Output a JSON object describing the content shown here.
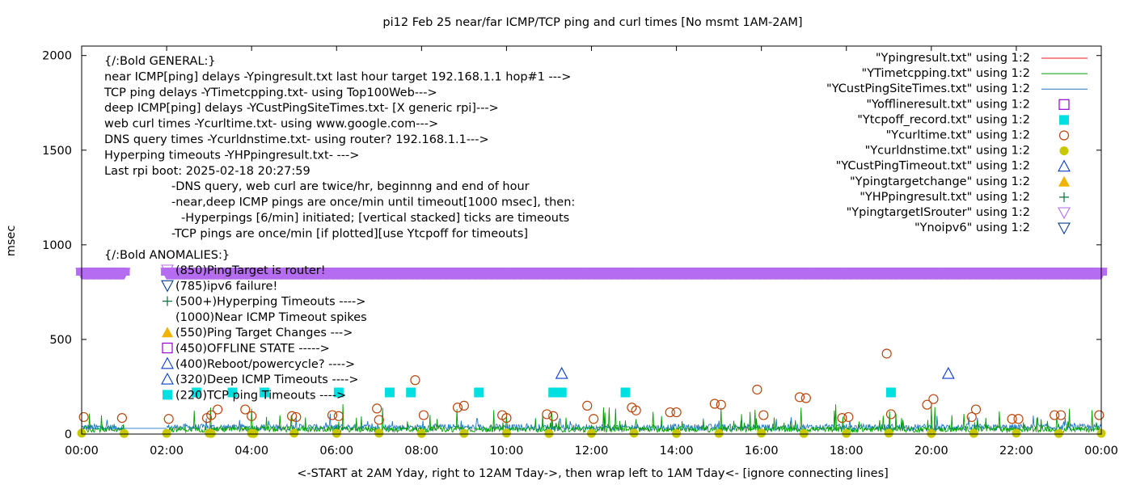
{
  "chart_data": {
    "type": "scatter",
    "title": "pi12 Feb 25  near/far ICMP/TCP ping and curl times [No msmt 1AM-2AM]",
    "xlabel": "<-START at 2AM Yday, right to 12AM Tday->, then wrap left to 1AM Tday<- [ignore connecting lines]",
    "ylabel": "msec",
    "xlim": [
      0,
      24
    ],
    "ylim": [
      0,
      2050
    ],
    "x_ticks": [
      "00:00",
      "02:00",
      "04:00",
      "06:00",
      "08:00",
      "10:00",
      "12:00",
      "14:00",
      "16:00",
      "18:00",
      "20:00",
      "22:00",
      "00:00"
    ],
    "y_ticks": [
      "0",
      "500",
      "1000",
      "1500",
      "2000"
    ],
    "legend_position": "top-right",
    "legend": [
      {
        "label": "\"Ypingresult.txt\" using 1:2",
        "color": "#e41a1c",
        "marker": "line"
      },
      {
        "label": "\"YTimetcpping.txt\" using 1:2",
        "color": "#009e00",
        "marker": "line"
      },
      {
        "label": "\"YCustPingSiteTimes.txt\" using 1:2",
        "color": "#1f77c4",
        "marker": "line"
      },
      {
        "label": "\"Yofflineresult.txt\" using 1:2",
        "color": "#9400d3",
        "marker": "open-square"
      },
      {
        "label": "\"Ytcpoff_record.txt\" using 1:2",
        "color": "#00e0e0",
        "marker": "filled-square"
      },
      {
        "label": "\"Ycurltime.txt\" using 1:2",
        "color": "#b8450b",
        "marker": "open-circle"
      },
      {
        "label": "\"Ycurldnstime.txt\" using 1:2",
        "color": "#c8c800",
        "marker": "filled-circle"
      },
      {
        "label": "\"YCustPingTimeout.txt\" using 1:2",
        "color": "#0a3cc8",
        "marker": "open-triangle-up"
      },
      {
        "label": "\"Ypingtargetchange\" using 1:2",
        "color": "#f0b400",
        "marker": "filled-triangle-up"
      },
      {
        "label": "\"YHPpingresult.txt\" using 1:2",
        "color": "#006d3c",
        "marker": "plus"
      },
      {
        "label": "\"YpingtargetISrouter\" using 1:2",
        "color": "#b56cf0",
        "marker": "open-triangle-down"
      },
      {
        "label": "\"Ynoipv6\" using 1:2",
        "color": "#0a3c8c",
        "marker": "open-triangle-down"
      }
    ],
    "annotations": [
      "{/:Bold GENERAL:}",
      "near ICMP[ping] delays -Ypingresult.txt last hour target 192.168.1.1 hop#1 --->",
      "TCP ping delays -YTimetcpping.txt- using Top100Web--->",
      "deep ICMP[ping] delays -YCustPingSiteTimes.txt- [X generic rpi]--->",
      "web curl times -Ycurltime.txt- using www.google.com--->",
      "DNS query times -Ycurldnstime.txt- using router? 192.168.1.1--->",
      "Hyperping timeouts -YHPpingresult.txt- --->",
      "Last rpi boot: 2025-02-18 20:27:59",
      "-DNS query, web curl are twice/hr, beginnng and end of hour",
      "-near,deep ICMP pings are once/min until timeout[1000 msec], then:",
      "-Hyperpings [6/min] initiated; [vertical stacked] ticks are timeouts",
      "-TCP pings are once/min [if plotted][use Ytcpoff for timeouts]",
      "{/:Bold ANOMALIES:}"
    ],
    "anomaly_legend": [
      {
        "text": "(850)PingTarget is router!",
        "marker": "open-triangle-down",
        "color": "#b56cf0"
      },
      {
        "text": "(785)ipv6 failure!",
        "marker": "open-triangle-down",
        "color": "#0a3c8c"
      },
      {
        "text": "(500+)Hyperping Timeouts ---->",
        "marker": "plus",
        "color": "#006d3c"
      },
      {
        "text": "(1000)Near ICMP Timeout spikes",
        "marker": "none",
        "color": "#000000"
      },
      {
        "text": "(550)Ping Target Changes --->",
        "marker": "filled-triangle-up",
        "color": "#f0b400"
      },
      {
        "text": "(450)OFFLINE STATE ----->",
        "marker": "open-square",
        "color": "#9400d3"
      },
      {
        "text": "(400)Reboot/powercycle? ---->",
        "marker": "open-triangle-up",
        "color": "#0a3cc8"
      },
      {
        "text": "(320)Deep ICMP Timeouts ---->",
        "marker": "open-triangle-up",
        "color": "#0a3cc8"
      },
      {
        "text": "(220)TCP ping Timeouts ---->",
        "marker": "filled-square",
        "color": "#00e0e0"
      }
    ],
    "series": [
      {
        "name": "\"YpingtargetISrouter\" using 1:2",
        "marker": "open-triangle-down",
        "y_constant": 850,
        "segments": [
          [
            0,
            1
          ],
          [
            2,
            24
          ]
        ]
      },
      {
        "name": "\"Ytcpoff_record.txt\" using 1:2",
        "x": [
          2.7,
          3.55,
          4.3,
          6.05,
          7.25,
          7.75,
          9.35,
          11.1,
          11.3,
          12.8,
          19.05
        ],
        "y": [
          220,
          220,
          220,
          220,
          220,
          220,
          220,
          220,
          220,
          220,
          220
        ]
      },
      {
        "name": "\"YCustPingTimeout.txt\" using 1:2",
        "x": [
          11.3,
          20.4
        ],
        "y": [
          320,
          320
        ]
      },
      {
        "name": "\"Ycurltime.txt\" using 1:2",
        "x": [
          0.05,
          0.95,
          2.05,
          2.95,
          3.05,
          3.2,
          3.85,
          4.0,
          4.95,
          5.05,
          5.9,
          6.05,
          6.95,
          7.0,
          7.85,
          8.05,
          8.85,
          9.0,
          9.9,
          10.0,
          10.95,
          11.1,
          11.9,
          12.05,
          12.95,
          13.05,
          13.85,
          14.0,
          14.9,
          15.05,
          15.9,
          16.05,
          16.9,
          17.05,
          17.9,
          18.05,
          18.95,
          19.05,
          19.9,
          20.05,
          20.95,
          21.05,
          21.9,
          22.05,
          22.9,
          23.05,
          23.95
        ],
        "y": [
          90,
          85,
          80,
          85,
          100,
          130,
          130,
          95,
          95,
          90,
          100,
          95,
          135,
          75,
          285,
          100,
          140,
          150,
          100,
          85,
          105,
          95,
          150,
          80,
          140,
          125,
          115,
          115,
          160,
          155,
          235,
          100,
          195,
          190,
          85,
          90,
          425,
          105,
          155,
          185,
          90,
          130,
          80,
          80,
          100,
          100,
          100
        ]
      },
      {
        "name": "\"Ycurldnstime.txt\" using 1:2",
        "x": [
          0,
          1,
          2,
          3,
          3.05,
          4,
          4.05,
          5,
          6,
          7,
          8,
          9,
          10,
          11,
          12,
          13,
          14,
          15,
          16,
          17,
          18,
          19,
          20,
          21,
          22,
          23,
          24
        ],
        "y": [
          5,
          3,
          4,
          5,
          3,
          4,
          3,
          5,
          4,
          5,
          3,
          4,
          5,
          3,
          4,
          5,
          3,
          4,
          5,
          3,
          4,
          5,
          3,
          4,
          5,
          3,
          4
        ]
      }
    ]
  }
}
